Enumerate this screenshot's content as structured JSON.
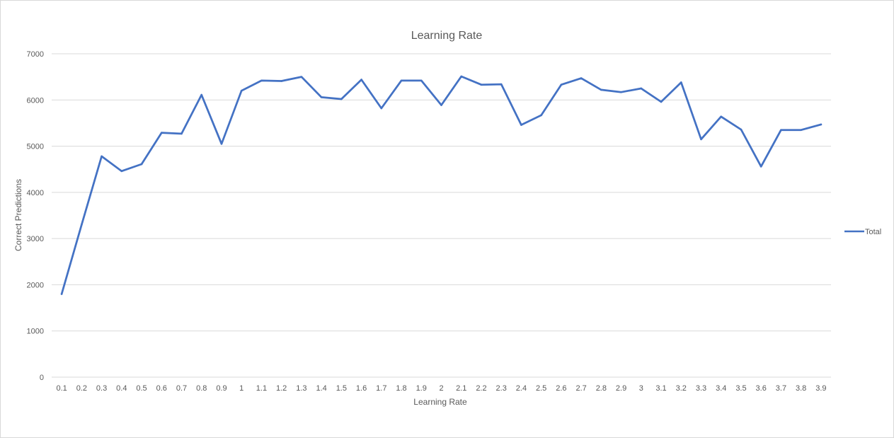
{
  "chart_data": {
    "type": "line",
    "title": "Learning Rate",
    "xlabel": "Learning Rate",
    "ylabel": "Correct Predictions",
    "ylim": [
      0,
      7000
    ],
    "yticks": [
      "0",
      "1000",
      "2000",
      "3000",
      "4000",
      "5000",
      "6000",
      "7000"
    ],
    "categories": [
      "0.1",
      "0.2",
      "0.3",
      "0.4",
      "0.5",
      "0.6",
      "0.7",
      "0.8",
      "0.9",
      "1",
      "1.1",
      "1.2",
      "1.3",
      "1.4",
      "1.5",
      "1.6",
      "1.7",
      "1.8",
      "1.9",
      "2",
      "2.1",
      "2.2",
      "2.3",
      "2.4",
      "2.5",
      "2.6",
      "2.7",
      "2.8",
      "2.9",
      "3",
      "3.1",
      "3.2",
      "3.3",
      "3.4",
      "3.5",
      "3.6",
      "3.7",
      "3.8",
      "3.9"
    ],
    "series": [
      {
        "name": "Total",
        "color": "#4472c4",
        "values": [
          1800,
          3300,
          4780,
          4460,
          4610,
          5290,
          5270,
          6110,
          5050,
          6200,
          6420,
          6410,
          6500,
          6060,
          6020,
          6440,
          5820,
          6420,
          6420,
          5890,
          6510,
          6330,
          6340,
          5460,
          5670,
          6330,
          6470,
          6220,
          6170,
          6250,
          5960,
          6380,
          5150,
          5640,
          5360,
          4560,
          5350,
          5350,
          5470
        ]
      }
    ],
    "grid": true,
    "legend_position": "right"
  }
}
